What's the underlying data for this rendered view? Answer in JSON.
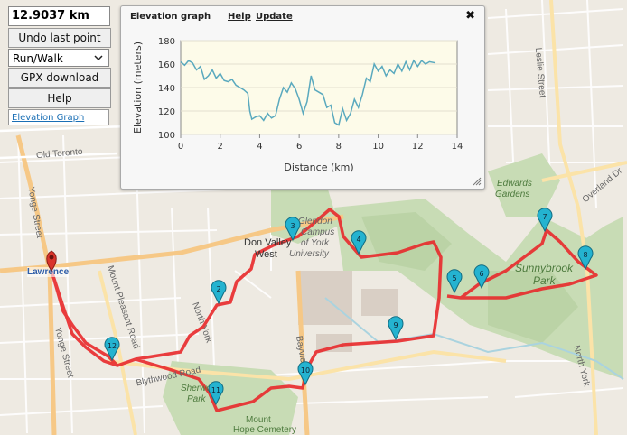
{
  "distance": "12.9037 km",
  "buttons": {
    "undo": "Undo last point",
    "mode": "Run/Walk",
    "gpx": "GPX download",
    "help": "Help"
  },
  "elevation_link": "Elevation Graph",
  "dialog": {
    "title": "Elevation graph",
    "help_link": "Help",
    "update_link": "Update",
    "close": "✖"
  },
  "map_labels": {
    "old_toronto": "Old Toronto",
    "yonge_street": "Yonge Street",
    "lawrence": "Lawrence",
    "mount_pleasant": "Mount Pleasant Road",
    "blythwood": "Blythwood Road",
    "don_valley": "Don Valley",
    "west": "West",
    "glendon_1": "Glendon",
    "glendon_2": "Campus",
    "glendon_3": "of York",
    "glendon_4": "University",
    "north_york": "North York",
    "north_york_2": "North York",
    "sherwood": "Sherwood",
    "park": "Park",
    "mount_hope_1": "Mount",
    "mount_hope_2": "Hope Cemetery",
    "bayview": "Bayview",
    "leslie": "Leslie Street",
    "edwards_1": "Edwards",
    "edwards_2": "Gardens",
    "sunnybrook_1": "Sunnybrook",
    "sunnybrook_2": "Park",
    "overland": "Overland Dr",
    "yonge_street_2": "Yonge Street"
  },
  "markers": [
    "2",
    "3",
    "4",
    "5",
    "6",
    "7",
    "8",
    "9",
    "10",
    "11",
    "12"
  ],
  "chart_data": {
    "type": "line",
    "title": "",
    "xlabel": "Distance (km)",
    "ylabel": "Elevation (meters)",
    "xlim": [
      0,
      14
    ],
    "ylim": [
      100,
      180
    ],
    "xticks": [
      "0",
      "2",
      "4",
      "6",
      "8",
      "10",
      "12",
      "14"
    ],
    "yticks": [
      "100",
      "120",
      "140",
      "160",
      "180"
    ],
    "series": [
      {
        "color": "#5aa9be",
        "x": [
          0,
          0.2,
          0.4,
          0.6,
          0.8,
          1.0,
          1.2,
          1.4,
          1.6,
          1.8,
          2.0,
          2.2,
          2.4,
          2.6,
          2.8,
          3.0,
          3.2,
          3.4,
          3.5,
          3.6,
          3.8,
          4.0,
          4.2,
          4.4,
          4.6,
          4.8,
          5.0,
          5.2,
          5.4,
          5.6,
          5.8,
          6.0,
          6.2,
          6.4,
          6.6,
          6.8,
          7.0,
          7.2,
          7.4,
          7.6,
          7.8,
          8.0,
          8.2,
          8.4,
          8.6,
          8.8,
          9.0,
          9.2,
          9.4,
          9.6,
          9.8,
          10.0,
          10.2,
          10.4,
          10.6,
          10.8,
          11.0,
          11.2,
          11.4,
          11.6,
          11.8,
          12.0,
          12.2,
          12.4,
          12.6,
          12.9
        ],
        "y": [
          162,
          159,
          163,
          161,
          155,
          158,
          147,
          150,
          155,
          148,
          152,
          146,
          145,
          147,
          142,
          140,
          138,
          135,
          120,
          113,
          115,
          116,
          112,
          118,
          114,
          116,
          130,
          140,
          136,
          144,
          139,
          130,
          118,
          128,
          150,
          138,
          136,
          134,
          123,
          125,
          110,
          108,
          122,
          112,
          118,
          130,
          123,
          134,
          148,
          145,
          160,
          154,
          158,
          150,
          155,
          152,
          160,
          154,
          162,
          155,
          163,
          158,
          163,
          160,
          162,
          161
        ]
      }
    ]
  }
}
